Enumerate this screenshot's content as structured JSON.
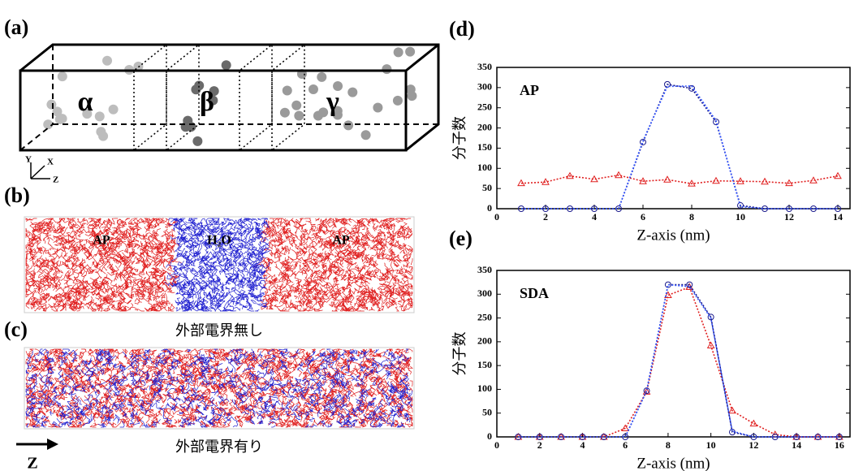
{
  "panels": {
    "a": "(a)",
    "b": "(b)",
    "c": "(c)",
    "d": "(d)",
    "e": "(e)"
  },
  "diagram": {
    "phases": [
      "α",
      "β",
      "γ"
    ],
    "axes": [
      "Y",
      "X",
      "Z"
    ]
  },
  "snapshot_b": {
    "labels": [
      "AP",
      "H₂O",
      "AP"
    ],
    "caption": "外部電界無し"
  },
  "snapshot_c": {
    "caption": "外部電界有り"
  },
  "direction": "Z",
  "chart_data": [
    {
      "type": "line",
      "annotation": "AP",
      "x_label": "Z-axis (nm)",
      "y_label": "分子数",
      "x": [
        1,
        2,
        3,
        4,
        5,
        6,
        7,
        8,
        9,
        10,
        11,
        12,
        13,
        14
      ],
      "xlim": [
        0,
        14.5
      ],
      "xticks": [
        0,
        2,
        4,
        6,
        8,
        10,
        12,
        14
      ],
      "ylim": [
        0,
        350
      ],
      "yticks": [
        0,
        50,
        100,
        150,
        200,
        250,
        300,
        350
      ],
      "series": [
        {
          "color": "#e02020",
          "marker": "triangle",
          "values": [
            63,
            66,
            81,
            73,
            83,
            68,
            72,
            62,
            69,
            68,
            67,
            63,
            70,
            81
          ]
        },
        {
          "color": "#1a1a8c",
          "marker": "circle",
          "values": [
            0,
            0,
            0,
            0,
            0,
            165,
            308,
            298,
            215,
            8,
            0,
            0,
            0,
            0
          ]
        },
        {
          "color": "#3355ff",
          "marker": "none",
          "values": [
            0,
            0,
            0,
            0,
            0,
            168,
            303,
            304,
            218,
            5,
            0,
            0,
            0,
            0
          ]
        }
      ]
    },
    {
      "type": "line",
      "annotation": "SDA",
      "x_label": "Z-axis (nm)",
      "y_label": "分子数",
      "x": [
        1,
        2,
        3,
        4,
        5,
        6,
        7,
        8,
        9,
        10,
        11,
        12,
        13,
        14,
        15,
        16
      ],
      "xlim": [
        0,
        16.5
      ],
      "xticks": [
        0,
        2,
        4,
        6,
        8,
        10,
        12,
        14,
        16
      ],
      "ylim": [
        0,
        350
      ],
      "yticks": [
        0,
        50,
        100,
        150,
        200,
        250,
        300,
        350
      ],
      "series": [
        {
          "color": "#e02020",
          "marker": "triangle",
          "values": [
            0,
            0,
            0,
            0,
            0,
            18,
            95,
            298,
            315,
            192,
            55,
            28,
            5,
            0,
            0,
            0
          ]
        },
        {
          "color": "#1a1a8c",
          "marker": "circle",
          "values": [
            0,
            0,
            0,
            0,
            0,
            0,
            97,
            320,
            320,
            252,
            10,
            0,
            0,
            0,
            0,
            0
          ]
        },
        {
          "color": "#3355ff",
          "marker": "none",
          "values": [
            0,
            0,
            0,
            0,
            0,
            0,
            97,
            320,
            316,
            250,
            12,
            0,
            0,
            0,
            0,
            0
          ]
        }
      ]
    }
  ]
}
